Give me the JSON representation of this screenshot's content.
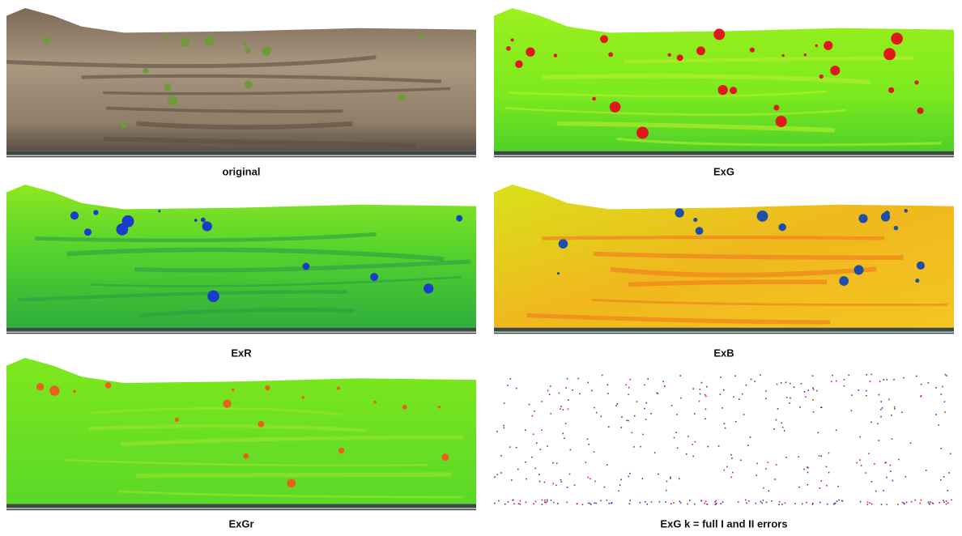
{
  "panels": [
    {
      "caption": "original"
    },
    {
      "caption": "ExG"
    },
    {
      "caption": "ExR"
    },
    {
      "caption": "ExB"
    },
    {
      "caption": "ExGr"
    },
    {
      "caption": "ExG k = full I and II errors"
    }
  ]
}
